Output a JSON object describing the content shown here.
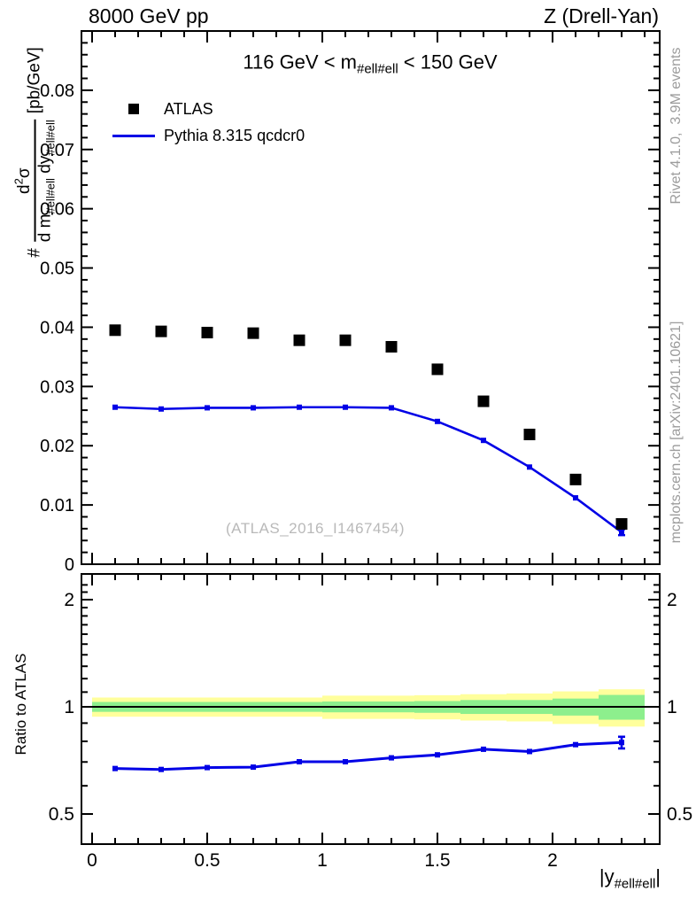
{
  "header": {
    "left": "8000 GeV pp",
    "right": "Z (Drell-Yan)"
  },
  "title": {
    "pre": "116 GeV < m",
    "sub": "#ell#ell",
    "post": " < 150 GeV"
  },
  "legend": [
    {
      "label": "ATLAS",
      "marker": "square",
      "color": "#000000"
    },
    {
      "label": "Pythia 8.315 qcdcr0",
      "marker": "line",
      "color": "#0000e6"
    }
  ],
  "ylabel": {
    "prefix": "#",
    "num_pre": "d",
    "num_sup": "2",
    "num_post": "σ",
    "den_1": "d m",
    "den_sub1": "#ell#ell",
    "den_2": " dy",
    "den_sub2": "#ell#ell",
    "units": "[pb/GeV]"
  },
  "ratio_ylabel": "Ratio to ATLAS",
  "xlabel": {
    "pre": "|y",
    "sub": "#ell#ell",
    "post": "|"
  },
  "watermark": "(ATLAS_2016_I1467454)",
  "side_notes": {
    "top": "Rivet 4.1.0,  3.9M events",
    "bottom": "mcplots.cern.ch [arXiv:2401.10621]"
  },
  "colors": {
    "pythia_blue": "#0000e6",
    "band_yellow": "#ffff9c",
    "band_green": "#8def8d",
    "note_gray": "#9c9c9c",
    "watermark_gray": "#b9b9b9",
    "frame_black": "#000000"
  },
  "chart_data": {
    "type": "line",
    "x": [
      0.1,
      0.3,
      0.5,
      0.7,
      0.9,
      1.1,
      1.3,
      1.5,
      1.7,
      1.9,
      2.1,
      2.3
    ],
    "bin_width": 0.2,
    "series": [
      {
        "name": "ATLAS",
        "style": "squares",
        "color": "#000000",
        "values": [
          0.0395,
          0.0393,
          0.0391,
          0.039,
          0.0378,
          0.0378,
          0.0367,
          0.0329,
          0.0275,
          0.0219,
          0.0143,
          0.0068
        ]
      },
      {
        "name": "Pythia 8.315 qcdcr0",
        "style": "line+markers",
        "color": "#0000e6",
        "values": [
          0.0265,
          0.0262,
          0.0264,
          0.0264,
          0.0265,
          0.0265,
          0.0264,
          0.0241,
          0.0209,
          0.0164,
          0.0112,
          0.0054
        ],
        "last_point_error": 0.0005
      }
    ],
    "ratio": {
      "name": "Ratio to ATLAS",
      "values": [
        0.671,
        0.667,
        0.675,
        0.677,
        0.701,
        0.701,
        0.719,
        0.733,
        0.76,
        0.749,
        0.783,
        0.794
      ],
      "last_point_error": 0.03,
      "band": {
        "bin_edges": [
          0,
          0.2,
          0.4,
          0.6,
          0.8,
          1.0,
          1.2,
          1.4,
          1.6,
          1.8,
          2.0,
          2.2,
          2.4
        ],
        "yellow_halfwidth": [
          0.062,
          0.062,
          0.062,
          0.062,
          0.062,
          0.075,
          0.075,
          0.078,
          0.085,
          0.09,
          0.105,
          0.12
        ],
        "green_halfwidth": [
          0.032,
          0.032,
          0.032,
          0.032,
          0.032,
          0.035,
          0.035,
          0.038,
          0.045,
          0.045,
          0.055,
          0.08
        ]
      }
    },
    "axes": {
      "x": {
        "min": -0.046,
        "max": 2.465,
        "major_ticks": [
          0,
          0.5,
          1,
          1.5,
          2
        ],
        "major_labels": [
          "0",
          "0.5",
          "1",
          "1.5",
          "2"
        ],
        "minor_step": 0.1,
        "minor_max": 2.4,
        "label": "|y_#ell#ell|"
      },
      "y_main": {
        "min": 0,
        "max": 0.09,
        "major_step": 0.01,
        "minor_step": 0.002,
        "tick_labels": [
          "0",
          "0.01",
          "0.02",
          "0.03",
          "0.04",
          "0.05",
          "0.06",
          "0.07",
          "0.08"
        ]
      },
      "y_ratio": {
        "scale": "log",
        "min": 0.41,
        "max": 2.36,
        "labeled_ticks": [
          0.5,
          1,
          2
        ],
        "labels": [
          "0.5",
          "1",
          "2"
        ],
        "minor_ticks": [
          0.6,
          0.7,
          0.8,
          0.9,
          1.1,
          1.2,
          1.3,
          1.4,
          1.5,
          1.6,
          1.7,
          1.8,
          1.9,
          2.1,
          2.2
        ],
        "grid_on": false,
        "unity_line": 1
      }
    },
    "title": "116 GeV < m_#ell#ell < 150 GeV",
    "xlabel": "|y_#ell#ell|",
    "ylabel_main": "# d2σ / d m_#ell#ell dy_#ell#ell [pb/GeV]",
    "ylabel_ratio": "Ratio to ATLAS",
    "legend_position": "top-left"
  }
}
